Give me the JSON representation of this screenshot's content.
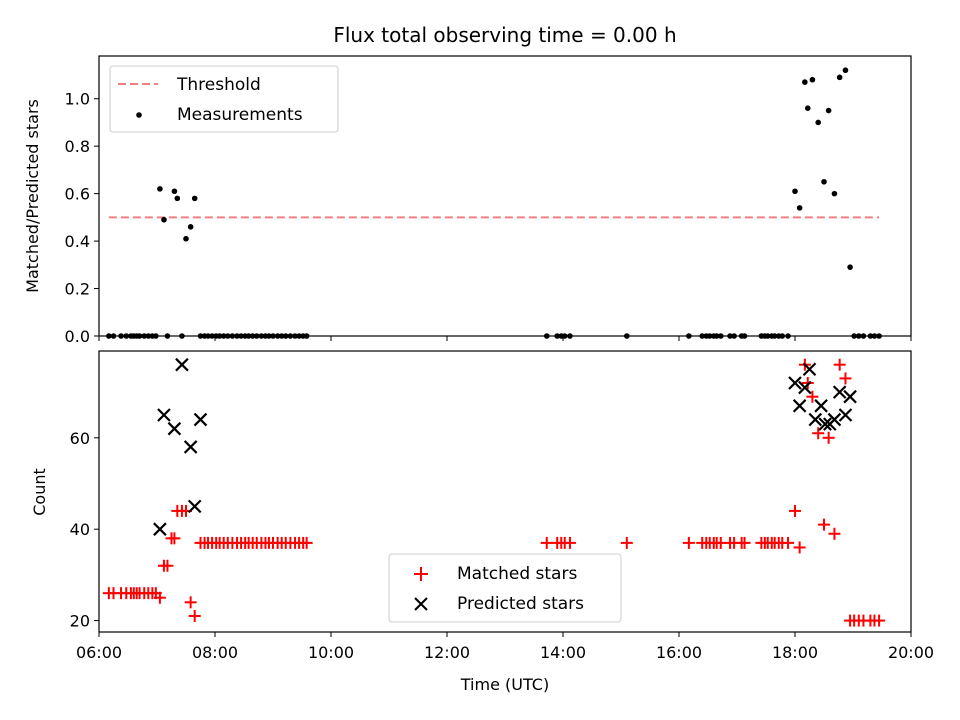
{
  "chart_data": [
    {
      "type": "scatter",
      "title": "Flux total observing time = 0.00 h",
      "xlabel": "",
      "ylabel": "Matched/Predicted stars",
      "xlim": [
        6.0,
        20.0
      ],
      "ylim": [
        0.0,
        1.18
      ],
      "yticks": [
        "0.0",
        "0.2",
        "0.4",
        "0.6",
        "0.8",
        "1.0"
      ],
      "ytick_values": [
        0.0,
        0.2,
        0.4,
        0.6,
        0.8,
        1.0
      ],
      "legend_position": "top-left",
      "threshold": {
        "name": "Threshold",
        "value": 0.5,
        "x_range": [
          6.17,
          19.45
        ],
        "color": "#f08080",
        "style": "dashed"
      },
      "series": [
        {
          "name": "Measurements",
          "color": "#000000",
          "marker": "dot",
          "x": [
            6.17,
            6.25,
            6.38,
            6.47,
            6.55,
            6.6,
            6.65,
            6.7,
            6.78,
            6.85,
            6.92,
            6.98,
            7.05,
            7.12,
            7.18,
            7.3,
            7.35,
            7.43,
            7.5,
            7.58,
            7.65,
            7.75,
            7.82,
            7.88,
            7.95,
            8.02,
            8.08,
            8.15,
            8.22,
            8.3,
            8.38,
            8.45,
            8.52,
            8.58,
            8.65,
            8.72,
            8.8,
            8.87,
            8.93,
            9.0,
            9.08,
            9.15,
            9.22,
            9.3,
            9.38,
            9.45,
            9.52,
            9.58,
            13.72,
            13.9,
            13.97,
            14.03,
            14.12,
            15.1,
            16.17,
            16.4,
            16.47,
            16.53,
            16.6,
            16.65,
            16.72,
            16.88,
            16.95,
            17.08,
            17.13,
            17.42,
            17.48,
            17.53,
            17.6,
            17.65,
            17.72,
            17.78,
            17.88,
            18.0,
            18.08,
            18.17,
            18.22,
            18.3,
            18.4,
            18.5,
            18.58,
            18.68,
            18.77,
            18.87,
            18.95,
            19.02,
            19.1,
            19.18,
            19.3,
            19.37,
            19.45
          ],
          "y": [
            0,
            0,
            0,
            0,
            0,
            0,
            0,
            0,
            0,
            0,
            0,
            0,
            0.62,
            0.49,
            0,
            0.61,
            0.58,
            0,
            0.41,
            0.46,
            0.58,
            0,
            0,
            0,
            0,
            0,
            0,
            0,
            0,
            0,
            0,
            0,
            0,
            0,
            0,
            0,
            0,
            0,
            0,
            0,
            0,
            0,
            0,
            0,
            0,
            0,
            0,
            0,
            0,
            0,
            0,
            0,
            0,
            0,
            0,
            0,
            0,
            0,
            0,
            0,
            0,
            0,
            0,
            0,
            0,
            0,
            0,
            0,
            0,
            0,
            0,
            0,
            0,
            0.61,
            0.54,
            1.07,
            0.96,
            1.08,
            0.9,
            0.65,
            0.95,
            0.6,
            1.09,
            1.12,
            0.29,
            0,
            0,
            0,
            0,
            0,
            0
          ]
        }
      ]
    },
    {
      "type": "scatter",
      "title": "",
      "xlabel": "Time (UTC)",
      "ylabel": "Count",
      "xlim": [
        6.0,
        20.0
      ],
      "ylim": [
        17.5,
        79.0
      ],
      "yticks": [
        "20",
        "40",
        "60"
      ],
      "ytick_values": [
        20,
        40,
        60
      ],
      "xticks": [
        "06:00",
        "08:00",
        "10:00",
        "12:00",
        "14:00",
        "16:00",
        "18:00",
        "20:00"
      ],
      "xtick_values": [
        6,
        8,
        10,
        12,
        14,
        16,
        18,
        20
      ],
      "legend_position": "bottom-center",
      "series": [
        {
          "name": "Matched stars",
          "color": "#ff0000",
          "marker": "plus",
          "x": [
            6.17,
            6.25,
            6.38,
            6.47,
            6.55,
            6.6,
            6.65,
            6.7,
            6.78,
            6.85,
            6.92,
            6.98,
            7.05,
            7.12,
            7.18,
            7.25,
            7.3,
            7.35,
            7.43,
            7.5,
            7.58,
            7.65,
            7.75,
            7.82,
            7.88,
            7.95,
            8.02,
            8.08,
            8.15,
            8.22,
            8.3,
            8.38,
            8.45,
            8.52,
            8.58,
            8.65,
            8.72,
            8.8,
            8.87,
            8.93,
            9.0,
            9.08,
            9.15,
            9.22,
            9.3,
            9.38,
            9.45,
            9.52,
            9.58,
            13.72,
            13.9,
            13.97,
            14.03,
            14.12,
            15.1,
            16.17,
            16.4,
            16.47,
            16.53,
            16.6,
            16.65,
            16.72,
            16.88,
            16.95,
            17.08,
            17.13,
            17.42,
            17.48,
            17.53,
            17.6,
            17.65,
            17.72,
            17.78,
            17.88,
            18.0,
            18.08,
            18.17,
            18.22,
            18.3,
            18.4,
            18.5,
            18.58,
            18.68,
            18.77,
            18.87,
            18.95,
            19.02,
            19.1,
            19.18,
            19.3,
            19.37,
            19.45
          ],
          "y": [
            26,
            26,
            26,
            26,
            26,
            26,
            26,
            26,
            26,
            26,
            26,
            26,
            25,
            32,
            32,
            38,
            38,
            44,
            44,
            44,
            24,
            21,
            37,
            37,
            37,
            37,
            37,
            37,
            37,
            37,
            37,
            37,
            37,
            37,
            37,
            37,
            37,
            37,
            37,
            37,
            37,
            37,
            37,
            37,
            37,
            37,
            37,
            37,
            37,
            37,
            37,
            37,
            37,
            37,
            37,
            37,
            37,
            37,
            37,
            37,
            37,
            37,
            37,
            37,
            37,
            37,
            37,
            37,
            37,
            37,
            37,
            37,
            37,
            37,
            44,
            36,
            76,
            72,
            69,
            61,
            41,
            60,
            39,
            76,
            73,
            20,
            20,
            20,
            20,
            20,
            20,
            20
          ]
        },
        {
          "name": "Predicted stars",
          "color": "#000000",
          "marker": "cross",
          "x": [
            7.05,
            7.12,
            7.3,
            7.43,
            7.58,
            7.65,
            7.75,
            18.0,
            18.08,
            18.17,
            18.25,
            18.35,
            18.45,
            18.52,
            18.6,
            18.68,
            18.77,
            18.87,
            18.95
          ],
          "y": [
            40,
            65,
            62,
            76,
            58,
            45,
            64,
            72,
            67,
            71,
            75,
            64,
            67,
            63,
            63,
            64,
            70,
            65,
            69
          ]
        }
      ]
    }
  ]
}
